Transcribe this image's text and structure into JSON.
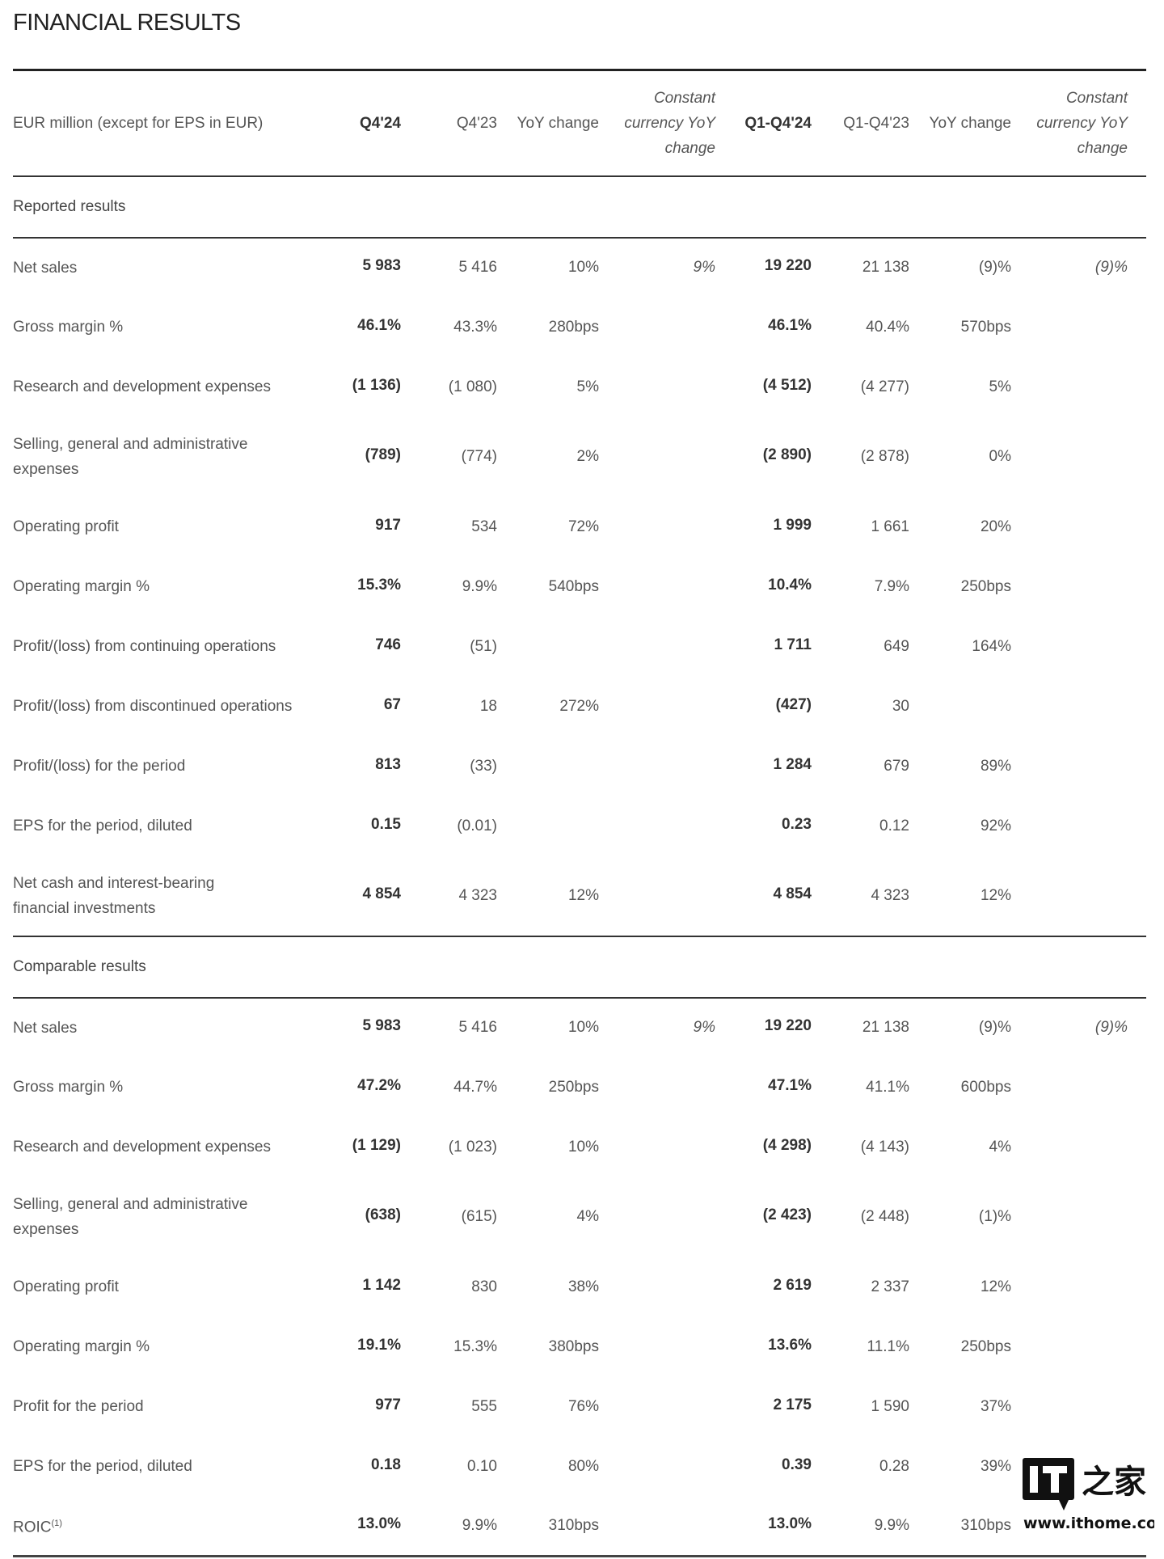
{
  "title": "FINANCIAL RESULTS",
  "header": [
    "EUR million (except for EPS in EUR)",
    "Q4'24",
    "Q4'23",
    "YoY change",
    "Constant currency YoY change",
    "Q1-Q4'24",
    "Q1-Q4'23",
    "YoY change",
    "Constant currency YoY change"
  ],
  "sections": [
    {
      "title": "Reported results",
      "rows": [
        {
          "label": "Net sales",
          "values": [
            "5 983",
            "5 416",
            "10%",
            "9%",
            "19 220",
            "21 138",
            "(9)%",
            "(9)%"
          ]
        },
        {
          "label": "Gross margin %",
          "values": [
            "46.1%",
            "43.3%",
            "280bps",
            "",
            "46.1%",
            "40.4%",
            "570bps",
            ""
          ]
        },
        {
          "label": "Research and development expenses",
          "values": [
            "(1 136)",
            "(1 080)",
            "5%",
            "",
            "(4 512)",
            "(4 277)",
            "5%",
            ""
          ]
        },
        {
          "label": "Selling, general and administrative expenses",
          "values": [
            "(789)",
            "(774)",
            "2%",
            "",
            "(2 890)",
            "(2 878)",
            "0%",
            ""
          ]
        },
        {
          "label": "Operating profit",
          "values": [
            "917",
            "534",
            "72%",
            "",
            "1 999",
            "1 661",
            "20%",
            ""
          ]
        },
        {
          "label": "Operating margin %",
          "values": [
            "15.3%",
            "9.9%",
            "540bps",
            "",
            "10.4%",
            "7.9%",
            "250bps",
            ""
          ]
        },
        {
          "label": "Profit/(loss) from continuing operations",
          "values": [
            "746",
            "(51)",
            "",
            "",
            "1 711",
            "649",
            "164%",
            ""
          ]
        },
        {
          "label": "Profit/(loss) from discontinued operations",
          "values": [
            "67",
            "18",
            "272%",
            "",
            "(427)",
            "30",
            "",
            ""
          ]
        },
        {
          "label": "Profit/(loss) for the period",
          "values": [
            "813",
            "(33)",
            "",
            "",
            "1 284",
            "679",
            "89%",
            ""
          ]
        },
        {
          "label": "EPS for the period, diluted",
          "values": [
            "0.15",
            "(0.01)",
            "",
            "",
            "0.23",
            "0.12",
            "92%",
            ""
          ]
        },
        {
          "label": "Net cash and interest-bearing financial investments",
          "values": [
            "4 854",
            "4 323",
            "12%",
            "",
            "4 854",
            "4 323",
            "12%",
            ""
          ]
        }
      ]
    },
    {
      "title": "Comparable results",
      "rows": [
        {
          "label": "Net sales",
          "values": [
            "5 983",
            "5 416",
            "10%",
            "9%",
            "19 220",
            "21 138",
            "(9)%",
            "(9)%"
          ]
        },
        {
          "label": "Gross margin %",
          "values": [
            "47.2%",
            "44.7%",
            "250bps",
            "",
            "47.1%",
            "41.1%",
            "600bps",
            ""
          ]
        },
        {
          "label": "Research and development expenses",
          "values": [
            "(1 129)",
            "(1 023)",
            "10%",
            "",
            "(4 298)",
            "(4 143)",
            "4%",
            ""
          ]
        },
        {
          "label": "Selling, general and administrative expenses",
          "values": [
            "(638)",
            "(615)",
            "4%",
            "",
            "(2 423)",
            "(2 448)",
            "(1)%",
            ""
          ]
        },
        {
          "label": "Operating profit",
          "values": [
            "1 142",
            "830",
            "38%",
            "",
            "2 619",
            "2 337",
            "12%",
            ""
          ]
        },
        {
          "label": "Operating margin %",
          "values": [
            "19.1%",
            "15.3%",
            "380bps",
            "",
            "13.6%",
            "11.1%",
            "250bps",
            ""
          ]
        },
        {
          "label": "Profit for the period",
          "values": [
            "977",
            "555",
            "76%",
            "",
            "2 175",
            "1 590",
            "37%",
            ""
          ]
        },
        {
          "label": "EPS for the period, diluted",
          "values": [
            "0.18",
            "0.10",
            "80%",
            "",
            "0.39",
            "0.28",
            "39%",
            ""
          ]
        },
        {
          "label": "ROIC",
          "sup": "(1)",
          "values": [
            "13.0%",
            "9.9%",
            "310bps",
            "",
            "13.0%",
            "9.9%",
            "310bps",
            ""
          ]
        }
      ]
    }
  ],
  "watermark": {
    "logo": "IT之家",
    "url": "www.ithome.com"
  }
}
